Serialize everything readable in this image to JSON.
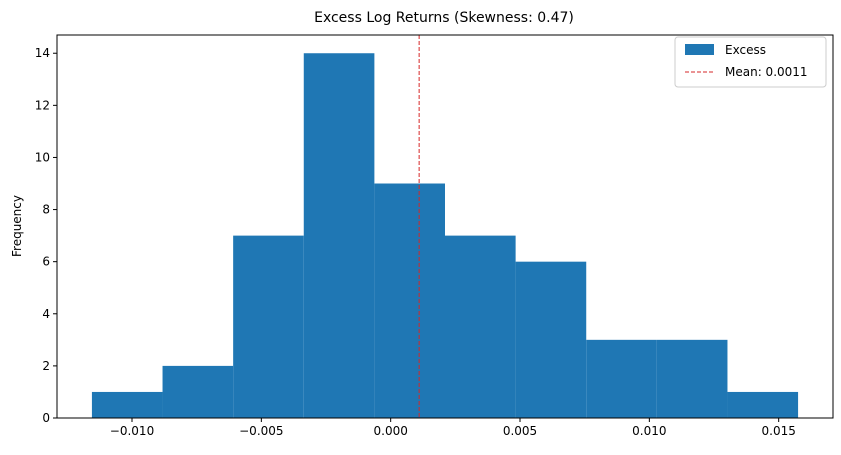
{
  "chart_data": {
    "type": "bar",
    "title": "Excess Log Returns (Skewness: 0.47)",
    "xlabel": "",
    "ylabel": "Frequency",
    "xlim": [
      -0.0129,
      0.0171
    ],
    "ylim": [
      0,
      14.7
    ],
    "x_ticks": [
      -0.01,
      -0.005,
      0.0,
      0.005,
      0.01,
      0.015
    ],
    "x_tick_labels": [
      "−0.010",
      "−0.005",
      "0.000",
      "0.005",
      "0.010",
      "0.015"
    ],
    "y_ticks": [
      0,
      2,
      4,
      6,
      8,
      10,
      12,
      14
    ],
    "y_tick_labels": [
      "0",
      "2",
      "4",
      "6",
      "8",
      "10",
      "12",
      "14"
    ],
    "bin_edges": [
      -0.01155,
      -0.00882,
      -0.00609,
      -0.00336,
      -0.00063,
      0.0021,
      0.00483,
      0.00756,
      0.01029,
      0.01302,
      0.01575
    ],
    "values": [
      1,
      2,
      7,
      14,
      9,
      7,
      6,
      3,
      3,
      1
    ],
    "series": [
      {
        "name": "Excess",
        "color": "#1f77b4"
      }
    ],
    "mean_line": {
      "value": 0.0011,
      "label": "Mean: 0.0011",
      "color": "#d62728"
    },
    "legend": {
      "position": "top-right",
      "entries": [
        "Excess",
        "Mean: 0.0011"
      ]
    },
    "grid": false
  }
}
